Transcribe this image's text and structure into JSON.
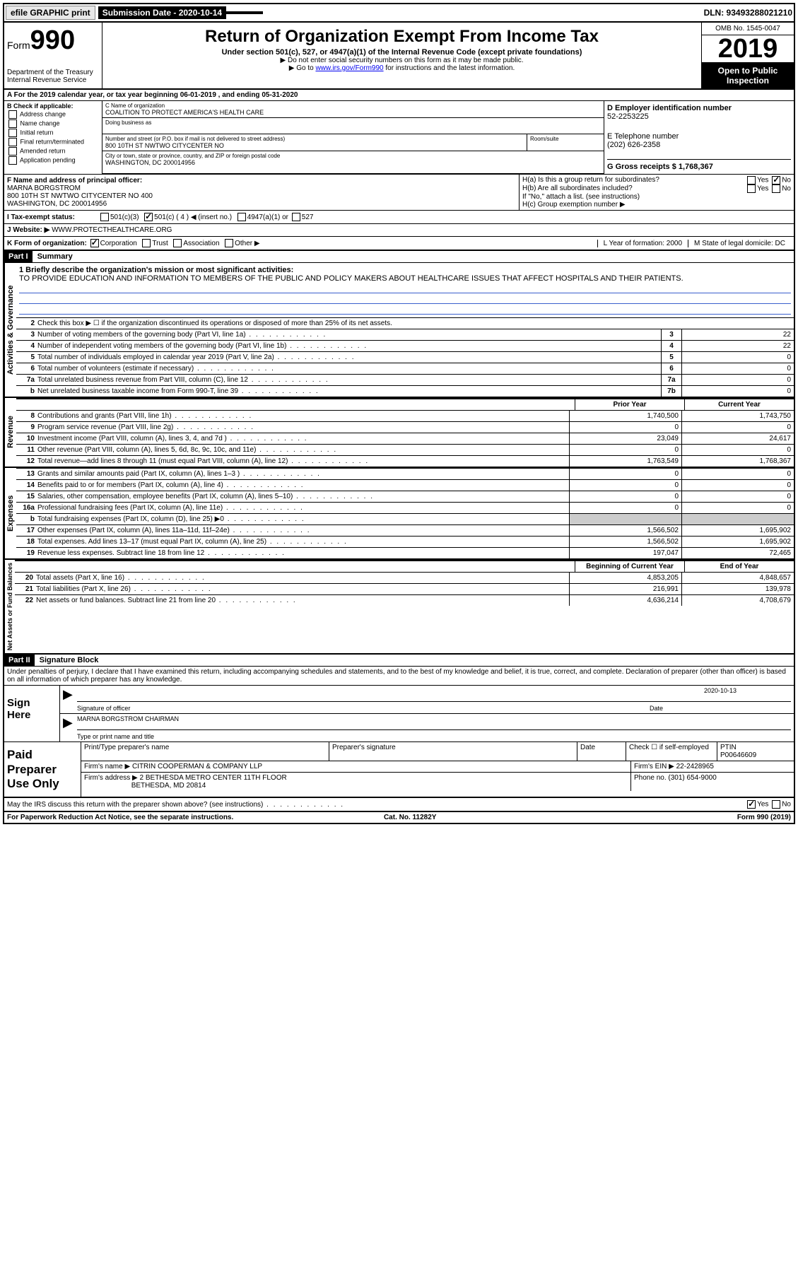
{
  "topbar": {
    "efile": "efile GRAPHIC print",
    "submission_label": "Submission Date - 2020-10-14",
    "dln": "DLN: 93493288021210"
  },
  "header": {
    "form_word": "Form",
    "form_num": "990",
    "dept": "Department of the Treasury\nInternal Revenue Service",
    "title": "Return of Organization Exempt From Income Tax",
    "subtitle": "Under section 501(c), 527, or 4947(a)(1) of the Internal Revenue Code (except private foundations)",
    "note1": "▶ Do not enter social security numbers on this form as it may be made public.",
    "note2_pre": "▶ Go to ",
    "note2_link": "www.irs.gov/Form990",
    "note2_post": " for instructions and the latest information.",
    "omb": "OMB No. 1545-0047",
    "year": "2019",
    "open": "Open to Public Inspection"
  },
  "line_a": "A For the 2019 calendar year, or tax year beginning 06-01-2019   , and ending 05-31-2020",
  "box_b": {
    "header": "B Check if applicable:",
    "items": [
      "Address change",
      "Name change",
      "Initial return",
      "Final return/terminated",
      "Amended return",
      "Application pending"
    ]
  },
  "box_c": {
    "name_label": "C Name of organization",
    "name": "COALITION TO PROTECT AMERICA'S HEALTH CARE",
    "dba_label": "Doing business as",
    "addr_label": "Number and street (or P.O. box if mail is not delivered to street address)",
    "room_label": "Room/suite",
    "addr": "800 10TH ST NWTWO CITYCENTER NO",
    "city_label": "City or town, state or province, country, and ZIP or foreign postal code",
    "city": "WASHINGTON, DC  200014956"
  },
  "box_d": {
    "label": "D Employer identification number",
    "ein": "52-2253225",
    "phone_label": "E Telephone number",
    "phone": "(202) 626-2358",
    "gross_label": "G Gross receipts $ 1,768,367"
  },
  "box_f": {
    "label": "F  Name and address of principal officer:",
    "name": "MARNA BORGSTROM",
    "addr1": "800 10TH ST NWTWO CITYCENTER NO 400",
    "addr2": "WASHINGTON, DC  200014956"
  },
  "box_h": {
    "ha_label": "H(a)  Is this a group return for subordinates?",
    "hb_label": "H(b)  Are all subordinates included?",
    "hb_note": "If \"No,\" attach a list. (see instructions)",
    "hc_label": "H(c)  Group exemption number ▶",
    "yes": "Yes",
    "no": "No"
  },
  "row_i": {
    "label": "I   Tax-exempt status:",
    "opts": [
      "501(c)(3)",
      "501(c) ( 4 ) ◀ (insert no.)",
      "4947(a)(1) or",
      "527"
    ]
  },
  "row_j": {
    "label": "J   Website: ▶",
    "value": "WWW.PROTECTHEALTHCARE.ORG"
  },
  "row_k": {
    "label": "K Form of organization:",
    "opts": [
      "Corporation",
      "Trust",
      "Association",
      "Other ▶"
    ],
    "l_label": "L Year of formation: 2000",
    "m_label": "M State of legal domicile: DC"
  },
  "part1": {
    "header": "Part I",
    "title": "Summary",
    "l1_label": "1  Briefly describe the organization's mission or most significant activities:",
    "l1_text": "TO PROVIDE EDUCATION AND INFORMATION TO MEMBERS OF THE PUBLIC AND POLICY MAKERS ABOUT HEALTHCARE ISSUES THAT AFFECT HOSPITALS AND THEIR PATIENTS.",
    "l2": "Check this box ▶ ☐  if the organization discontinued its operations or disposed of more than 25% of its net assets.",
    "sections": {
      "governance": "Activities & Governance",
      "revenue": "Revenue",
      "expenses": "Expenses",
      "net": "Net Assets or Fund Balances"
    },
    "prior_year": "Prior Year",
    "current_year": "Current Year",
    "beg_year": "Beginning of Current Year",
    "end_year": "End of Year",
    "gov_lines": [
      {
        "n": "3",
        "t": "Number of voting members of the governing body (Part VI, line 1a)",
        "box": "3",
        "v": "22"
      },
      {
        "n": "4",
        "t": "Number of independent voting members of the governing body (Part VI, line 1b)",
        "box": "4",
        "v": "22"
      },
      {
        "n": "5",
        "t": "Total number of individuals employed in calendar year 2019 (Part V, line 2a)",
        "box": "5",
        "v": "0"
      },
      {
        "n": "6",
        "t": "Total number of volunteers (estimate if necessary)",
        "box": "6",
        "v": "0"
      },
      {
        "n": "7a",
        "t": "Total unrelated business revenue from Part VIII, column (C), line 12",
        "box": "7a",
        "v": "0"
      },
      {
        "n": "b",
        "t": "Net unrelated business taxable income from Form 990-T, line 39",
        "box": "7b",
        "v": "0"
      }
    ],
    "rev_lines": [
      {
        "n": "8",
        "t": "Contributions and grants (Part VIII, line 1h)",
        "py": "1,740,500",
        "cy": "1,743,750"
      },
      {
        "n": "9",
        "t": "Program service revenue (Part VIII, line 2g)",
        "py": "0",
        "cy": "0"
      },
      {
        "n": "10",
        "t": "Investment income (Part VIII, column (A), lines 3, 4, and 7d )",
        "py": "23,049",
        "cy": "24,617"
      },
      {
        "n": "11",
        "t": "Other revenue (Part VIII, column (A), lines 5, 6d, 8c, 9c, 10c, and 11e)",
        "py": "0",
        "cy": "0"
      },
      {
        "n": "12",
        "t": "Total revenue—add lines 8 through 11 (must equal Part VIII, column (A), line 12)",
        "py": "1,763,549",
        "cy": "1,768,367"
      }
    ],
    "exp_lines": [
      {
        "n": "13",
        "t": "Grants and similar amounts paid (Part IX, column (A), lines 1–3 )",
        "py": "0",
        "cy": "0"
      },
      {
        "n": "14",
        "t": "Benefits paid to or for members (Part IX, column (A), line 4)",
        "py": "0",
        "cy": "0"
      },
      {
        "n": "15",
        "t": "Salaries, other compensation, employee benefits (Part IX, column (A), lines 5–10)",
        "py": "0",
        "cy": "0"
      },
      {
        "n": "16a",
        "t": "Professional fundraising fees (Part IX, column (A), line 11e)",
        "py": "0",
        "cy": "0"
      },
      {
        "n": "b",
        "t": "Total fundraising expenses (Part IX, column (D), line 25) ▶0",
        "py": "",
        "cy": "",
        "gray": true
      },
      {
        "n": "17",
        "t": "Other expenses (Part IX, column (A), lines 11a–11d, 11f–24e)",
        "py": "1,566,502",
        "cy": "1,695,902"
      },
      {
        "n": "18",
        "t": "Total expenses. Add lines 13–17 (must equal Part IX, column (A), line 25)",
        "py": "1,566,502",
        "cy": "1,695,902"
      },
      {
        "n": "19",
        "t": "Revenue less expenses. Subtract line 18 from line 12",
        "py": "197,047",
        "cy": "72,465"
      }
    ],
    "net_lines": [
      {
        "n": "20",
        "t": "Total assets (Part X, line 16)",
        "py": "4,853,205",
        "cy": "4,848,657"
      },
      {
        "n": "21",
        "t": "Total liabilities (Part X, line 26)",
        "py": "216,991",
        "cy": "139,978"
      },
      {
        "n": "22",
        "t": "Net assets or fund balances. Subtract line 21 from line 20",
        "py": "4,636,214",
        "cy": "4,708,679"
      }
    ]
  },
  "part2": {
    "header": "Part II",
    "title": "Signature Block",
    "penalties": "Under penalties of perjury, I declare that I have examined this return, including accompanying schedules and statements, and to the best of my knowledge and belief, it is true, correct, and complete. Declaration of preparer (other than officer) is based on all information of which preparer has any knowledge.",
    "sign_here": "Sign Here",
    "sig_officer": "Signature of officer",
    "sig_date_label": "Date",
    "sig_date": "2020-10-13",
    "officer_name": "MARNA BORGSTROM CHAIRMAN",
    "type_name": "Type or print name and title",
    "paid": "Paid Preparer Use Only",
    "prep_name_label": "Print/Type preparer's name",
    "prep_sig_label": "Preparer's signature",
    "date_label": "Date",
    "check_self": "Check ☐ if self-employed",
    "ptin_label": "PTIN",
    "ptin": "P00646609",
    "firm_name_label": "Firm's name   ▶",
    "firm_name": "CITRIN COOPERMAN & COMPANY LLP",
    "firm_ein_label": "Firm's EIN ▶",
    "firm_ein": "22-2428965",
    "firm_addr_label": "Firm's address ▶",
    "firm_addr1": "2 BETHESDA METRO CENTER 11TH FLOOR",
    "firm_addr2": "BETHESDA, MD  20814",
    "phone_label": "Phone no.",
    "phone": "(301) 654-9000",
    "discuss": "May the IRS discuss this return with the preparer shown above? (see instructions)"
  },
  "footer": {
    "left": "For Paperwork Reduction Act Notice, see the separate instructions.",
    "center": "Cat. No. 11282Y",
    "right": "Form 990 (2019)"
  }
}
